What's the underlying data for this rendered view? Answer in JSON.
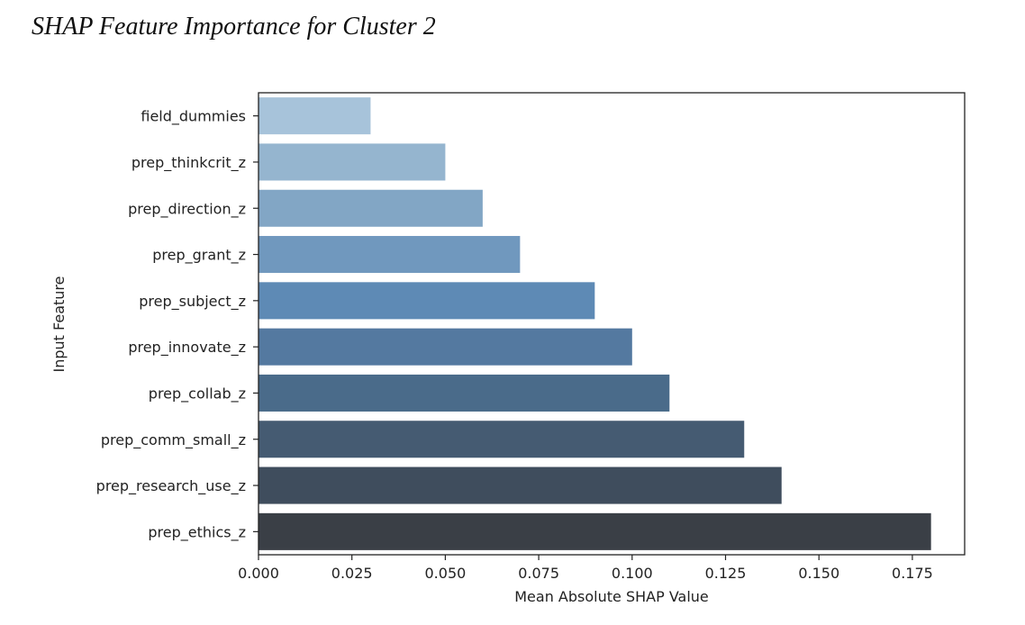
{
  "page": {
    "title": "SHAP Feature Importance for Cluster 2"
  },
  "chart_data": {
    "type": "bar",
    "orientation": "horizontal",
    "title": "",
    "xlabel": "Mean Absolute SHAP Value",
    "ylabel": "Input Feature",
    "xlim": [
      0,
      0.189
    ],
    "xticks": [
      0.0,
      0.025,
      0.05,
      0.075,
      0.1,
      0.125,
      0.15,
      0.175
    ],
    "xtick_labels": [
      "0.000",
      "0.025",
      "0.050",
      "0.075",
      "0.100",
      "0.125",
      "0.150",
      "0.175"
    ],
    "grid": false,
    "legend": "none",
    "categories": [
      "field_dummies",
      "prep_thinkcrit_z",
      "prep_direction_z",
      "prep_grant_z",
      "prep_subject_z",
      "prep_innovate_z",
      "prep_collab_z",
      "prep_comm_small_z",
      "prep_research_use_z",
      "prep_ethics_z"
    ],
    "values": [
      0.03,
      0.05,
      0.06,
      0.07,
      0.09,
      0.1,
      0.11,
      0.13,
      0.14,
      0.18
    ],
    "colors": [
      "#a7c3da",
      "#95b5cf",
      "#82a6c5",
      "#7098be",
      "#5e8ab5",
      "#5479a0",
      "#4a6b8a",
      "#455b72",
      "#3f4d5d",
      "#3a3f46"
    ]
  }
}
